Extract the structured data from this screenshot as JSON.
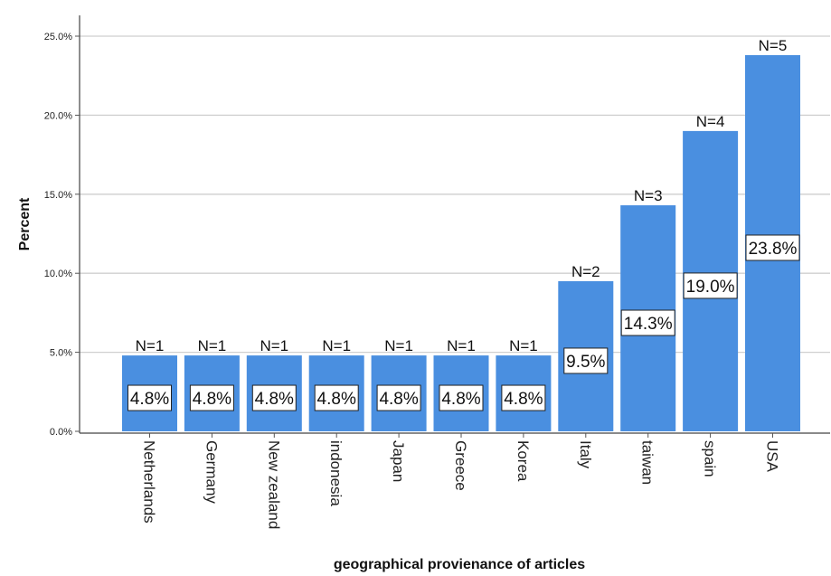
{
  "chart_data": {
    "type": "bar",
    "categories": [
      "Netherlands",
      "Germany",
      "New zealand",
      "indonesia",
      "Japan",
      "Greece",
      "Korea",
      "Italy",
      "taiwan",
      "spain",
      "USA"
    ],
    "values": [
      4.8,
      4.8,
      4.8,
      4.8,
      4.8,
      4.8,
      4.8,
      9.5,
      14.3,
      19.0,
      23.8
    ],
    "value_labels": [
      "4.8%",
      "4.8%",
      "4.8%",
      "4.8%",
      "4.8%",
      "4.8%",
      "4.8%",
      "9.5%",
      "14.3%",
      "19.0%",
      "23.8%"
    ],
    "counts": [
      "N=1",
      "N=1",
      "N=1",
      "N=1",
      "N=1",
      "N=1",
      "N=1",
      "N=2",
      "N=3",
      "N=4",
      "N=5"
    ],
    "xlabel": "geographical provienance of articles",
    "ylabel": "Percent",
    "ylim": [
      0,
      25
    ],
    "yticks": [
      0,
      5,
      10,
      15,
      20,
      25
    ],
    "ytick_labels": [
      "0.0%",
      "5.0%",
      "10.0%",
      "15.0%",
      "20.0%",
      "25.0%"
    ],
    "grid": true,
    "bar_color": "#4a8fe0"
  }
}
